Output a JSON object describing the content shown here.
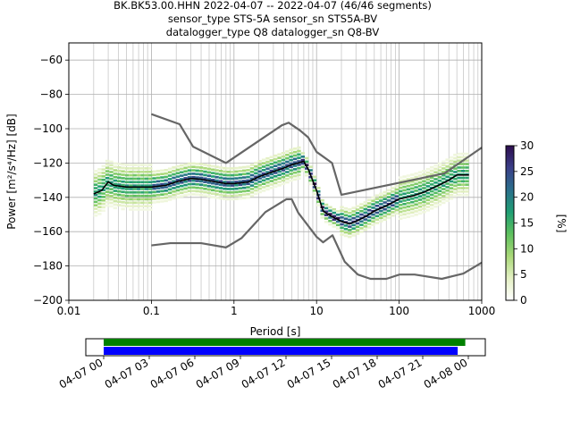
{
  "title_lines": [
    "BK.BK53.00.HHN   2022-04-07 -- 2022-04-07  (46/46 segments)",
    "sensor_type STS-5A sensor_sn STS5A-BV",
    "datalogger_type Q8 datalogger_sn Q8-BV"
  ],
  "chart_data": {
    "type": "heatmap",
    "xlabel": "Period [s]",
    "ylabel": "Power [m²/s⁴/Hz] [dB]",
    "x_scale": "log",
    "xlim": [
      0.01,
      1000
    ],
    "ylim": [
      -200,
      -50
    ],
    "x_ticks": [
      0.01,
      0.1,
      1,
      10,
      100,
      1000
    ],
    "x_tick_labels": [
      "0.01",
      "0.1",
      "1",
      "10",
      "100",
      "1000"
    ],
    "y_ticks": [
      -60,
      -80,
      -100,
      -120,
      -140,
      -160,
      -180,
      -200
    ],
    "y_tick_labels": [
      "−60",
      "−80",
      "−100",
      "−120",
      "−140",
      "−160",
      "−180",
      "−200"
    ],
    "grid": true,
    "colorbar": {
      "label": "[%]",
      "range": [
        0,
        30
      ],
      "ticks": [
        0,
        5,
        10,
        15,
        20,
        25,
        30
      ],
      "tick_labels": [
        "0",
        "5",
        "10",
        "15",
        "20",
        "25",
        "30"
      ],
      "colors": [
        "#ffffff",
        "#e4f0c4",
        "#a9d878",
        "#5ec05e",
        "#1f9e74",
        "#2b6f8c",
        "#3a3f88",
        "#2d0d4e"
      ]
    },
    "series": [
      {
        "role": "psd_mode",
        "color": "#000000",
        "x": [
          0.02,
          0.025,
          0.03,
          0.035,
          0.05,
          0.07,
          0.1,
          0.15,
          0.2,
          0.3,
          0.4,
          0.6,
          0.8,
          1,
          1.5,
          2,
          3,
          4,
          5,
          6,
          7,
          8,
          10,
          12,
          15,
          20,
          25,
          30,
          40,
          50,
          70,
          100,
          150,
          200,
          300,
          400,
          500,
          600,
          700
        ],
        "y": [
          -138,
          -136,
          -131,
          -133,
          -134,
          -134,
          -134,
          -133,
          -131,
          -129,
          -129.5,
          -131,
          -132,
          -132,
          -131,
          -128,
          -125,
          -123,
          -121,
          -120,
          -119,
          -124,
          -136,
          -148,
          -151,
          -154,
          -155.5,
          -154,
          -151,
          -148,
          -145,
          -141,
          -139,
          -137,
          -133,
          -130,
          -127,
          -127,
          -127
        ]
      },
      {
        "role": "noise_model_high",
        "color": "#666666",
        "x": [
          0.1,
          0.22,
          0.32,
          0.8,
          3.8,
          4.6,
          6.3,
          7.9,
          10,
          15.4,
          20,
          354.8,
          1000
        ],
        "y": [
          -91.5,
          -97.4,
          -110.5,
          -120,
          -98,
          -96.5,
          -101,
          -105,
          -113.5,
          -120,
          -138.5,
          -126,
          -111
        ]
      },
      {
        "role": "noise_model_low",
        "color": "#666666",
        "x": [
          0.1,
          0.17,
          0.4,
          0.8,
          1.24,
          2.4,
          4.3,
          5,
          6,
          10,
          12,
          15.6,
          21.9,
          31.6,
          45,
          70,
          101,
          154,
          328,
          600,
          1000
        ],
        "y": [
          -168,
          -166.7,
          -166.7,
          -169.2,
          -163.7,
          -148.6,
          -141.1,
          -141.1,
          -149,
          -163,
          -166.2,
          -162.1,
          -177.5,
          -185,
          -187.5,
          -187.5,
          -185,
          -185,
          -187.5,
          -184.4,
          -178
        ]
      }
    ]
  },
  "timeline": {
    "tick_labels": [
      "04-07 00",
      "04-07 03",
      "04-07 06",
      "04-07 09",
      "04-07 12",
      "04-07 15",
      "04-07 18",
      "04-07 21",
      "04-08 00"
    ],
    "coverage_color": "#008000",
    "segments_color": "#0000ff",
    "coverage_hours": [
      0,
      23.8
    ],
    "segments_hours": [
      0,
      23.3
    ],
    "range_hours": [
      0,
      24
    ]
  }
}
